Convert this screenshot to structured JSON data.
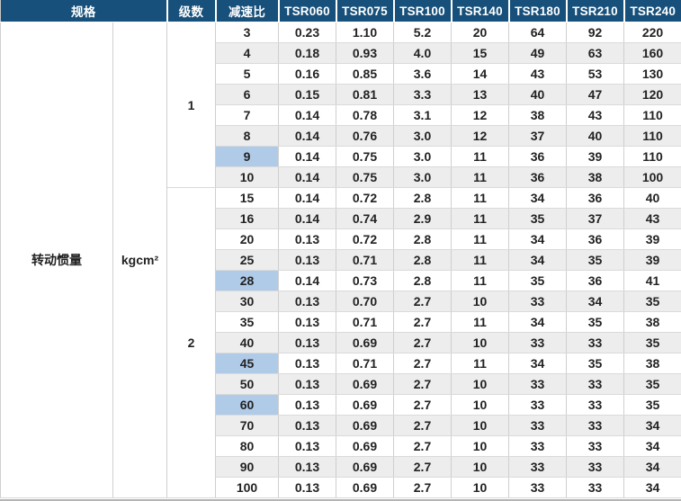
{
  "colors": {
    "header_bg": "#17507a",
    "header_text": "#ffffff",
    "stripe": "#ededed",
    "highlight": "#b0cbe8",
    "border": "#cfcfcf",
    "text": "#222222"
  },
  "chart_data": {
    "type": "table",
    "corner_header": "规格",
    "stage_header": "级数",
    "ratio_header": "减速比",
    "model_headers": [
      "TSR060",
      "TSR075",
      "TSR100",
      "TSR140",
      "TSR180",
      "TSR210",
      "TSR240"
    ],
    "row_label": "转动惯量",
    "unit": "kgcm²",
    "highlight_ratios": [
      "6",
      "9",
      "16",
      "28",
      "45",
      "60",
      "90"
    ],
    "groups": [
      {
        "stage": "1",
        "rows": [
          [
            "3",
            "0.23",
            "1.10",
            "5.2",
            "20",
            "64",
            "92",
            "220"
          ],
          [
            "4",
            "0.18",
            "0.93",
            "4.0",
            "15",
            "49",
            "63",
            "160"
          ],
          [
            "5",
            "0.16",
            "0.85",
            "3.6",
            "14",
            "43",
            "53",
            "130"
          ],
          [
            "6",
            "0.15",
            "0.81",
            "3.3",
            "13",
            "40",
            "47",
            "120"
          ],
          [
            "7",
            "0.14",
            "0.78",
            "3.1",
            "12",
            "38",
            "43",
            "110"
          ],
          [
            "8",
            "0.14",
            "0.76",
            "3.0",
            "12",
            "37",
            "40",
            "110"
          ],
          [
            "9",
            "0.14",
            "0.75",
            "3.0",
            "11",
            "36",
            "39",
            "110"
          ],
          [
            "10",
            "0.14",
            "0.75",
            "3.0",
            "11",
            "36",
            "38",
            "100"
          ]
        ]
      },
      {
        "stage": "2",
        "rows": [
          [
            "15",
            "0.14",
            "0.72",
            "2.8",
            "11",
            "34",
            "36",
            "40"
          ],
          [
            "16",
            "0.14",
            "0.74",
            "2.9",
            "11",
            "35",
            "37",
            "43"
          ],
          [
            "20",
            "0.13",
            "0.72",
            "2.8",
            "11",
            "34",
            "36",
            "39"
          ],
          [
            "25",
            "0.13",
            "0.71",
            "2.8",
            "11",
            "34",
            "35",
            "39"
          ],
          [
            "28",
            "0.14",
            "0.73",
            "2.8",
            "11",
            "35",
            "36",
            "41"
          ],
          [
            "30",
            "0.13",
            "0.70",
            "2.7",
            "10",
            "33",
            "34",
            "35"
          ],
          [
            "35",
            "0.13",
            "0.71",
            "2.7",
            "11",
            "34",
            "35",
            "38"
          ],
          [
            "40",
            "0.13",
            "0.69",
            "2.7",
            "10",
            "33",
            "33",
            "35"
          ],
          [
            "45",
            "0.13",
            "0.71",
            "2.7",
            "11",
            "34",
            "35",
            "38"
          ],
          [
            "50",
            "0.13",
            "0.69",
            "2.7",
            "10",
            "33",
            "33",
            "35"
          ],
          [
            "60",
            "0.13",
            "0.69",
            "2.7",
            "10",
            "33",
            "33",
            "35"
          ],
          [
            "70",
            "0.13",
            "0.69",
            "2.7",
            "10",
            "33",
            "33",
            "34"
          ],
          [
            "80",
            "0.13",
            "0.69",
            "2.7",
            "10",
            "33",
            "33",
            "34"
          ],
          [
            "90",
            "0.13",
            "0.69",
            "2.7",
            "10",
            "33",
            "33",
            "34"
          ],
          [
            "100",
            "0.13",
            "0.69",
            "2.7",
            "10",
            "33",
            "33",
            "34"
          ]
        ]
      }
    ]
  }
}
